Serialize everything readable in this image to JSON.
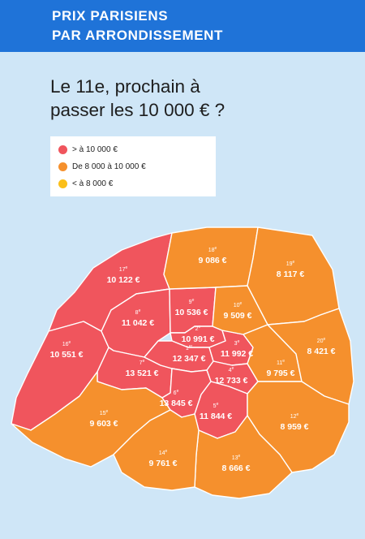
{
  "banner": {
    "line1": "PRIX PARISIENS",
    "line2": "PAR ARRONDISSEMENT"
  },
  "headline": {
    "line1": "Le 11e, prochain à",
    "line2": "passer les 10 000 € ?"
  },
  "colors": {
    "background": "#cfe6f7",
    "banner": "#1f73d8",
    "red": "#f0555d",
    "orange": "#f5902d",
    "yellow": "#fbbf19"
  },
  "legend": [
    {
      "label": "> à 10 000 €",
      "color": "#f0555d"
    },
    {
      "label": "De 8 000 à 10 000 €",
      "color": "#f5902d"
    },
    {
      "label": "< à 8 000 €",
      "color": "#fbbf19"
    }
  ],
  "arrondissements": [
    {
      "num": "1",
      "sup": "er",
      "price": "12 347 €",
      "value": 12347,
      "category": "red"
    },
    {
      "num": "2",
      "sup": "e",
      "price": "10 991 €",
      "value": 10991,
      "category": "red"
    },
    {
      "num": "3",
      "sup": "e",
      "price": "11 992 €",
      "value": 11992,
      "category": "red"
    },
    {
      "num": "4",
      "sup": "e",
      "price": "12 733 €",
      "value": 12733,
      "category": "red"
    },
    {
      "num": "5",
      "sup": "e",
      "price": "11 844 €",
      "value": 11844,
      "category": "red"
    },
    {
      "num": "6",
      "sup": "e",
      "price": "13 845 €",
      "value": 13845,
      "category": "red"
    },
    {
      "num": "7",
      "sup": "e",
      "price": "13 521 €",
      "value": 13521,
      "category": "red"
    },
    {
      "num": "8",
      "sup": "e",
      "price": "11 042 €",
      "value": 11042,
      "category": "red"
    },
    {
      "num": "9",
      "sup": "e",
      "price": "10 536 €",
      "value": 10536,
      "category": "red"
    },
    {
      "num": "10",
      "sup": "e",
      "price": "9 509 €",
      "value": 9509,
      "category": "orange"
    },
    {
      "num": "11",
      "sup": "e",
      "price": "9 795 €",
      "value": 9795,
      "category": "orange"
    },
    {
      "num": "12",
      "sup": "e",
      "price": "8 959 €",
      "value": 8959,
      "category": "orange"
    },
    {
      "num": "13",
      "sup": "e",
      "price": "8 666 €",
      "value": 8666,
      "category": "orange"
    },
    {
      "num": "14",
      "sup": "e",
      "price": "9 761 €",
      "value": 9761,
      "category": "orange"
    },
    {
      "num": "15",
      "sup": "e",
      "price": "9 603 €",
      "value": 9603,
      "category": "orange"
    },
    {
      "num": "16",
      "sup": "e",
      "price": "10 551 €",
      "value": 10551,
      "category": "red"
    },
    {
      "num": "17",
      "sup": "e",
      "price": "10 122 €",
      "value": 10122,
      "category": "red"
    },
    {
      "num": "18",
      "sup": "e",
      "price": "9 086 €",
      "value": 9086,
      "category": "orange"
    },
    {
      "num": "19",
      "sup": "e",
      "price": "8 117 €",
      "value": 8117,
      "category": "orange"
    },
    {
      "num": "20",
      "sup": "e",
      "price": "8 421 €",
      "value": 8421,
      "category": "orange"
    }
  ]
}
